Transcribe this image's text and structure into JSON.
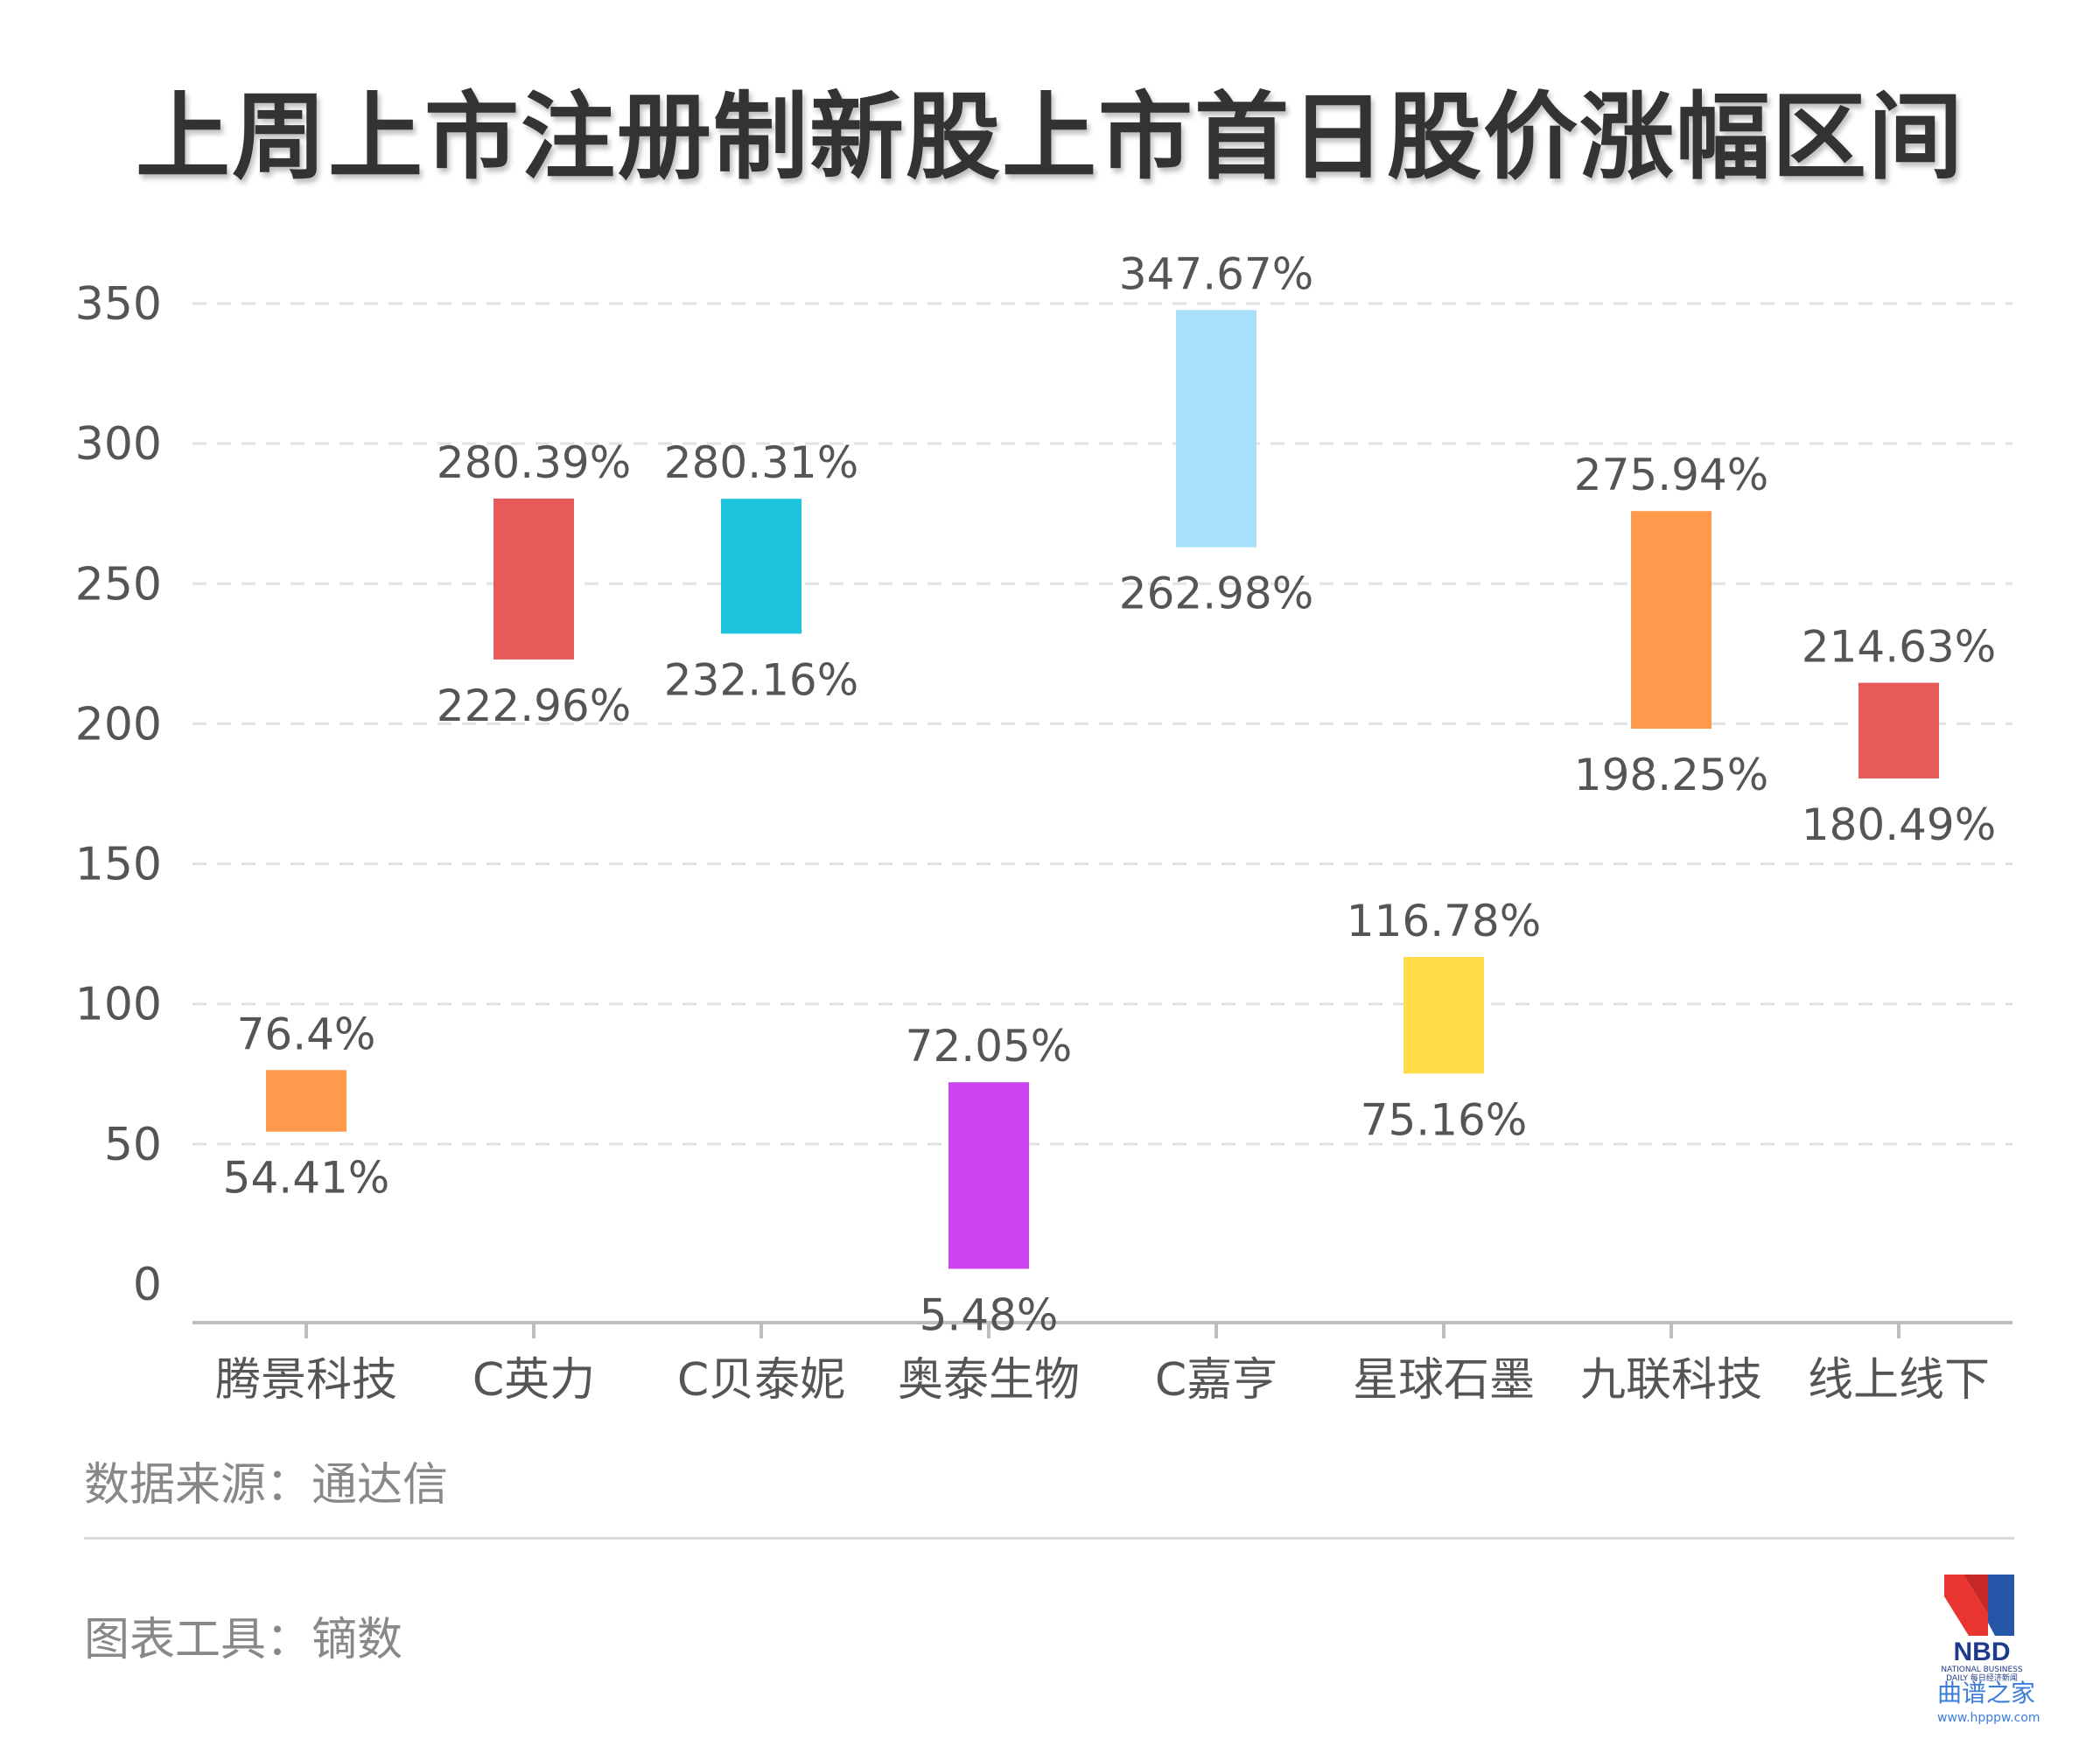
{
  "title": "上周上市注册制新股上市首日股价涨幅区间",
  "footer": {
    "source": "数据来源：通达信",
    "tool": "图表工具：镝数"
  },
  "logo": {
    "name": "nbd-logo",
    "text": "NBD",
    "subtext": "NATIONAL BUSINESS DAILY 每日经济新闻"
  },
  "watermark": {
    "text": "曲谱之家",
    "url": "www.hpppw.com"
  },
  "chart_data": {
    "type": "bar",
    "subtype": "floating-range",
    "categories": [
      "腾景科技",
      "C英力",
      "C贝泰妮",
      "奥泰生物",
      "C嘉亨",
      "星球石墨",
      "九联科技",
      "线上线下"
    ],
    "low": [
      54.41,
      222.96,
      232.16,
      5.48,
      262.98,
      75.16,
      198.25,
      180.49
    ],
    "high": [
      76.4,
      280.39,
      280.31,
      72.05,
      347.67,
      116.78,
      275.94,
      214.63
    ],
    "low_labels": [
      "54.41%",
      "222.96%",
      "232.16%",
      "5.48%",
      "262.98%",
      "75.16%",
      "198.25%",
      "180.49%"
    ],
    "high_labels": [
      "76.4%",
      "280.39%",
      "280.31%",
      "72.05%",
      "347.67%",
      "116.78%",
      "275.94%",
      "214.63%"
    ],
    "colors": [
      "#ff9a4d",
      "#e85a5a",
      "#1ec4dc",
      "#cc44f0",
      "#a8e0fa",
      "#ffdc48",
      "#ff9a4d",
      "#e85a5a"
    ],
    "yticks": [
      0,
      50,
      100,
      150,
      200,
      250,
      300,
      350
    ],
    "ylim": [
      -15,
      355
    ],
    "grid": true,
    "legend": "none"
  }
}
